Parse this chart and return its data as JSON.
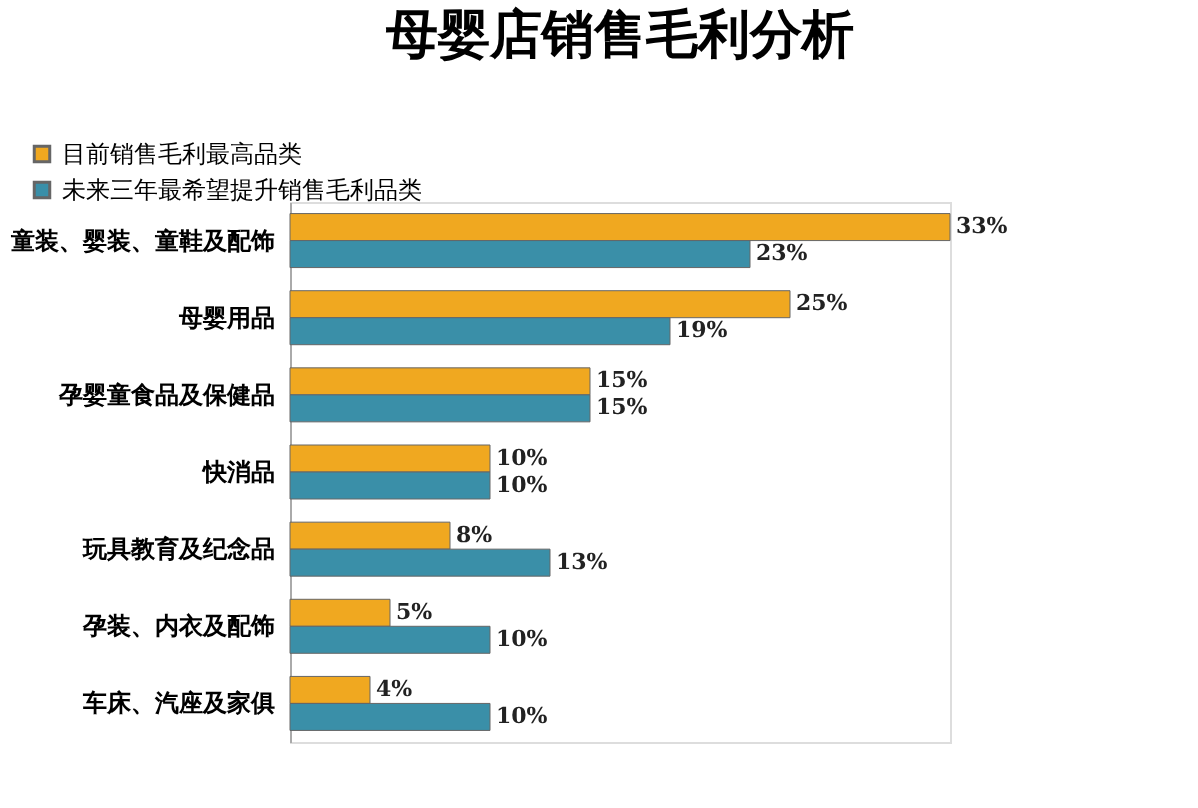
{
  "chart_data": {
    "type": "bar",
    "orientation": "horizontal",
    "title": "母婴店销售毛利分析",
    "legend": "top left",
    "categories": [
      "童装、婴装、童鞋及配饰",
      "母婴用品",
      "孕婴童食品及保健品",
      "快消品",
      "玩具教育及纪念品",
      "孕装、内衣及配饰",
      "车床、汽座及家俱"
    ],
    "series": [
      {
        "name": "目前销售毛利最高品类",
        "color": "#f0a820",
        "values": [
          33,
          25,
          15,
          10,
          8,
          5,
          4
        ],
        "value_labels": [
          "33%",
          "25%",
          "15%",
          "10%",
          "8%",
          "5%",
          "4%"
        ]
      },
      {
        "name": "未来三年最希望提升销售毛利品类",
        "color": "#3a8fa8",
        "values": [
          23,
          19,
          15,
          10,
          13,
          10,
          10
        ],
        "value_labels": [
          "23%",
          "19%",
          "15%",
          "10%",
          "13%",
          "10%",
          "10%"
        ]
      }
    ]
  }
}
